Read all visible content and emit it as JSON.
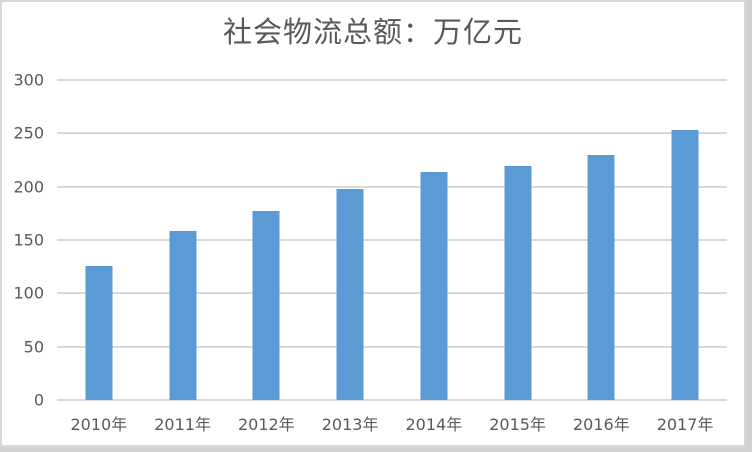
{
  "window": {
    "background_color": "#ffffff",
    "border_color": "#d9d9d9",
    "shadow_color": "#d2d2d2"
  },
  "chart_data": {
    "type": "bar",
    "title": "社会物流总额：万亿元",
    "categories": [
      "2010年",
      "2011年",
      "2012年",
      "2013年",
      "2014年",
      "2015年",
      "2016年",
      "2017年"
    ],
    "values": [
      125.4,
      158.4,
      177.3,
      197.8,
      213.5,
      219.2,
      229.7,
      252.8
    ],
    "xlabel": "",
    "ylabel": "",
    "ylim": [
      0,
      300
    ],
    "yticks": [
      0,
      50,
      100,
      150,
      200,
      250,
      300
    ],
    "grid": true,
    "legend": false,
    "legend_position": "none",
    "bar_color": "#5b9bd5",
    "gridline_color": "#d9d9d9",
    "axis_line_color": "#d9d9d9",
    "text_color": "#595959"
  }
}
